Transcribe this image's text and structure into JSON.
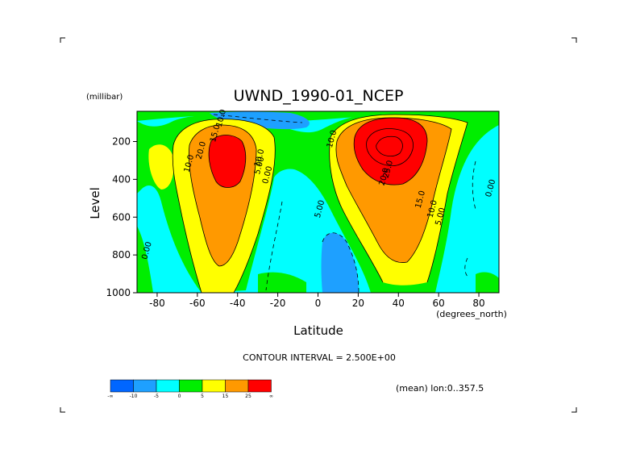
{
  "chart_data": {
    "type": "contour",
    "title": "UWND_1990-01_NCEP",
    "xlabel": "Latitude",
    "x_units": "(degrees_north)",
    "ylabel": "Level",
    "y_units": "(millibar)",
    "xlim": [
      -90,
      90
    ],
    "ylim": [
      1000,
      40
    ],
    "x_ticks": [
      -80,
      -60,
      -40,
      -20,
      0,
      20,
      40,
      60,
      80
    ],
    "y_ticks": [
      200,
      400,
      600,
      800,
      1000
    ],
    "contour_interval_text": "CONTOUR INTERVAL = 2.500E+00",
    "mean_text": "(mean) lon:0..357.5",
    "contour_labels": [
      {
        "text": "10.0",
        "x": -47,
        "y": 80
      },
      {
        "text": "15.0",
        "x": -50,
        "y": 160
      },
      {
        "text": "20.0",
        "x": -57,
        "y": 250
      },
      {
        "text": "10.0",
        "x": -63,
        "y": 320
      },
      {
        "text": "10.0",
        "x": -28,
        "y": 290
      },
      {
        "text": "5.00",
        "x": -28,
        "y": 330
      },
      {
        "text": "0.00",
        "x": -24,
        "y": 380
      },
      {
        "text": "0.00",
        "x": -84,
        "y": 780
      },
      {
        "text": "5.00",
        "x": 2,
        "y": 560
      },
      {
        "text": "10.0",
        "x": 8,
        "y": 190
      },
      {
        "text": "25.0",
        "x": 36,
        "y": 350
      },
      {
        "text": "20.0",
        "x": 34,
        "y": 390
      },
      {
        "text": "15.0",
        "x": 52,
        "y": 510
      },
      {
        "text": "10.0",
        "x": 58,
        "y": 560
      },
      {
        "text": "5.00",
        "x": 62,
        "y": 600
      },
      {
        "text": "0.00",
        "x": 87,
        "y": 450
      }
    ],
    "colorbar": {
      "colors": [
        "#0066ff",
        "#1ea0ff",
        "#00ffff",
        "#00ee00",
        "#ffff00",
        "#ff9900",
        "#ff0000"
      ],
      "labels": [
        "-∞",
        "-10",
        "-5",
        "0",
        "5",
        "15",
        "25",
        "∞"
      ]
    }
  }
}
